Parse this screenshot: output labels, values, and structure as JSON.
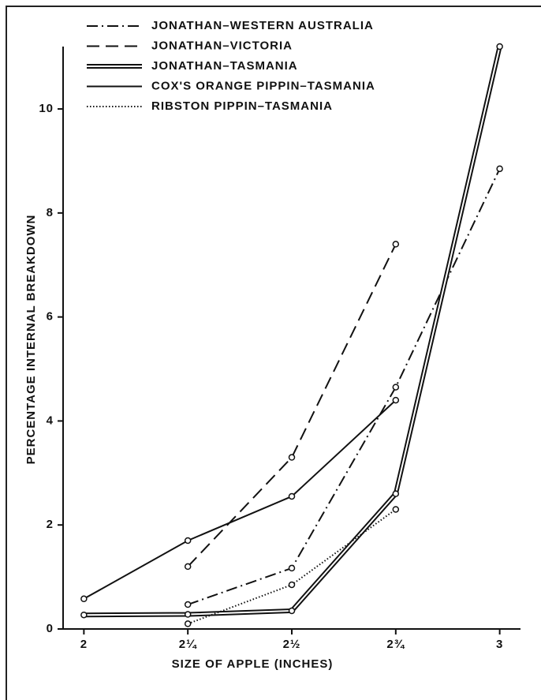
{
  "chart_data": {
    "type": "line",
    "xlabel": "SIZE OF APPLE (INCHES)",
    "ylabel": "PERCENTAGE INTERNAL BREAKDOWN",
    "x": [
      2,
      2.25,
      2.5,
      2.75,
      3
    ],
    "series": [
      {
        "name": "JONATHAN–WESTERN AUSTRALIA",
        "color": "#111111",
        "style": "dashdot",
        "values": [
          null,
          0.47,
          1.17,
          4.65,
          8.85
        ]
      },
      {
        "name": "JONATHAN–VICTORIA",
        "color": "#111111",
        "style": "dashed",
        "values": [
          null,
          1.2,
          3.3,
          7.4,
          null
        ]
      },
      {
        "name": "JONATHAN–TASMANIA",
        "color": "#111111",
        "style": "double",
        "values": [
          0.27,
          0.28,
          0.35,
          2.6,
          11.2
        ]
      },
      {
        "name": "COX'S ORANGE PIPPIN–TASMANIA",
        "color": "#111111",
        "style": "solid",
        "values": [
          0.58,
          1.7,
          2.55,
          4.4,
          null
        ]
      },
      {
        "name": "RIBSTON PIPPIN–TASMANIA",
        "color": "#111111",
        "style": "dotted",
        "values": [
          null,
          0.1,
          0.85,
          2.3,
          null
        ]
      }
    ],
    "xlim": [
      1.95,
      3.05
    ],
    "xticks": [
      2,
      {
        "value": 2.25,
        "label": "2¼"
      },
      {
        "value": 2.5,
        "label": "2½"
      },
      {
        "value": 2.75,
        "label": "2¾"
      },
      3
    ],
    "ylim": [
      0,
      11.2
    ],
    "yticks": [
      0,
      2,
      4,
      6,
      8,
      10
    ],
    "legend": "top-left"
  }
}
